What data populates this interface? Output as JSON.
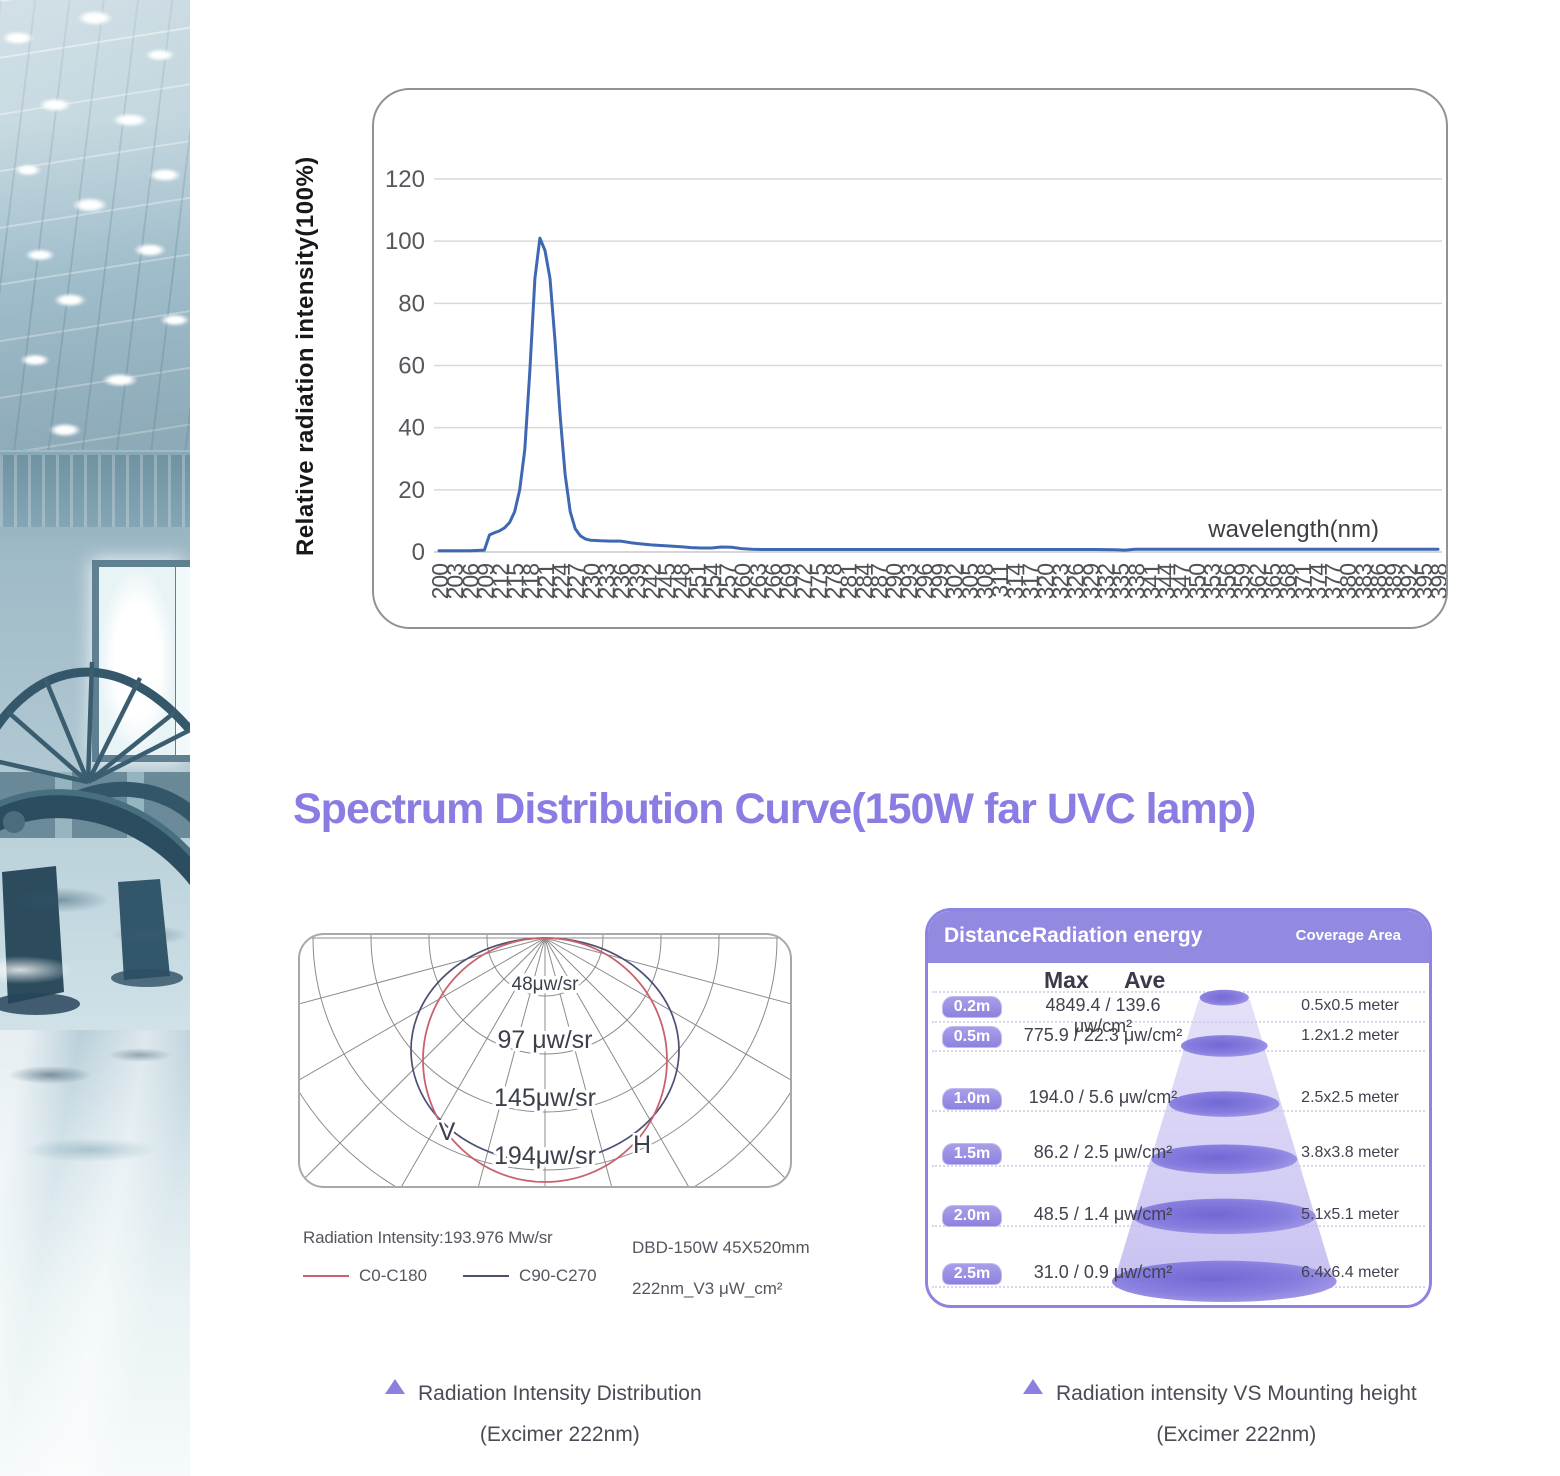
{
  "title": "Spectrum Distribution Curve(150W far UVC lamp)",
  "chart_data": [
    {
      "id": "spectrum",
      "type": "line",
      "ylabel": "Relative radiation intensity(100%)",
      "xlabel": "wavelength(nm)",
      "ylim": [
        0,
        120
      ],
      "yticks": [
        0,
        20,
        40,
        60,
        80,
        100,
        120
      ],
      "xticks": [
        200,
        203,
        206,
        209,
        212,
        215,
        218,
        221,
        224,
        227,
        230,
        233,
        236,
        239,
        242,
        245,
        248,
        251,
        254,
        257,
        260,
        263,
        266,
        269,
        272,
        275,
        278,
        281,
        284,
        287,
        290,
        293,
        296,
        299,
        302,
        305,
        308,
        311,
        314,
        317,
        320,
        323,
        326,
        329,
        332,
        335,
        338,
        341,
        344,
        347,
        350,
        353,
        356,
        359,
        362,
        365,
        368,
        371,
        374,
        377,
        380,
        383,
        386,
        389,
        392,
        395,
        398
      ],
      "line_color": "#3f68b2",
      "grid": true,
      "points": [
        [
          200,
          0.4
        ],
        [
          202,
          0.4
        ],
        [
          204,
          0.4
        ],
        [
          206,
          0.4
        ],
        [
          208,
          0.5
        ],
        [
          209,
          0.6
        ],
        [
          210,
          5.5
        ],
        [
          211,
          6.2
        ],
        [
          212,
          6.8
        ],
        [
          213,
          7.8
        ],
        [
          214,
          9.5
        ],
        [
          215,
          13
        ],
        [
          216,
          20
        ],
        [
          217,
          33
        ],
        [
          218,
          58
        ],
        [
          219,
          88
        ],
        [
          220,
          101
        ],
        [
          221,
          97
        ],
        [
          222,
          88
        ],
        [
          223,
          68
        ],
        [
          224,
          44
        ],
        [
          225,
          25
        ],
        [
          226,
          13
        ],
        [
          227,
          7.5
        ],
        [
          228,
          5.2
        ],
        [
          229,
          4.2
        ],
        [
          230,
          3.8
        ],
        [
          232,
          3.6
        ],
        [
          234,
          3.5
        ],
        [
          236,
          3.5
        ],
        [
          238,
          3.0
        ],
        [
          240,
          2.6
        ],
        [
          242,
          2.3
        ],
        [
          244,
          2.1
        ],
        [
          246,
          1.9
        ],
        [
          248,
          1.7
        ],
        [
          250,
          1.4
        ],
        [
          252,
          1.3
        ],
        [
          254,
          1.3
        ],
        [
          256,
          1.6
        ],
        [
          258,
          1.5
        ],
        [
          260,
          1.1
        ],
        [
          262,
          0.9
        ],
        [
          264,
          0.8
        ],
        [
          267,
          0.8
        ],
        [
          272,
          0.8
        ],
        [
          278,
          0.8
        ],
        [
          284,
          0.8
        ],
        [
          290,
          0.8
        ],
        [
          296,
          0.8
        ],
        [
          302,
          0.8
        ],
        [
          308,
          0.8
        ],
        [
          314,
          0.8
        ],
        [
          320,
          0.8
        ],
        [
          326,
          0.8
        ],
        [
          330,
          0.8
        ],
        [
          334,
          0.7
        ],
        [
          336,
          0.6
        ],
        [
          338,
          0.9
        ],
        [
          344,
          0.9
        ],
        [
          350,
          0.9
        ],
        [
          356,
          0.9
        ],
        [
          362,
          0.9
        ],
        [
          368,
          0.9
        ],
        [
          374,
          0.9
        ],
        [
          380,
          0.9
        ],
        [
          386,
          0.9
        ],
        [
          392,
          0.9
        ],
        [
          398,
          0.9
        ]
      ]
    },
    {
      "id": "radiation_polar",
      "type": "polar",
      "rings": [
        {
          "label": "48μw/sr",
          "value": 48
        },
        {
          "label": "97 μw/sr",
          "value": 97
        },
        {
          "label": "145μw/sr",
          "value": 145
        },
        {
          "label": "194μw/sr",
          "value": 194
        }
      ],
      "axis_labels": {
        "v": "V",
        "h": "H"
      },
      "max_intensity_note": "Radiation Intensity:193.976 Mw/sr",
      "series": [
        {
          "name": "C0-C180",
          "color": "#c9626e"
        },
        {
          "name": "C90-C270",
          "color": "#4c5172"
        }
      ],
      "model_note_line1": "DBD-150W 45X520mm",
      "model_note_line2": "222nm_V3 μW_cm²",
      "caption": [
        "Radiation Intensity Distribution",
        "(Excimer 222nm)"
      ]
    },
    {
      "id": "mounting_height",
      "type": "table",
      "headers": {
        "distance": "Distance",
        "energy": "Radiation energy",
        "coverage": "Coverage Area"
      },
      "energy_subheader": {
        "max": "Max",
        "ave": "Ave"
      },
      "rows": [
        {
          "distance": "0.2m",
          "energy": "4849.4 / 139.6 μw/cm²",
          "coverage": "0.5x0.5 meter"
        },
        {
          "distance": "0.5m",
          "energy": "775.9 / 22.3 μw/cm²",
          "coverage": "1.2x1.2 meter"
        },
        {
          "distance": "1.0m",
          "energy": "194.0 / 5.6 μw/cm²",
          "coverage": "2.5x2.5 meter"
        },
        {
          "distance": "1.5m",
          "energy": "86.2 / 2.5 μw/cm²",
          "coverage": "3.8x3.8 meter"
        },
        {
          "distance": "2.0m",
          "energy": "48.5 / 1.4 μw/cm²",
          "coverage": "5.1x5.1 meter"
        },
        {
          "distance": "2.5m",
          "energy": "31.0 / 0.9 μw/cm²",
          "coverage": "6.4x6.4 meter"
        }
      ],
      "caption": [
        "Radiation intensity VS Mounting height",
        "(Excimer 222nm)"
      ]
    }
  ],
  "accent_color": "#8b80e0"
}
